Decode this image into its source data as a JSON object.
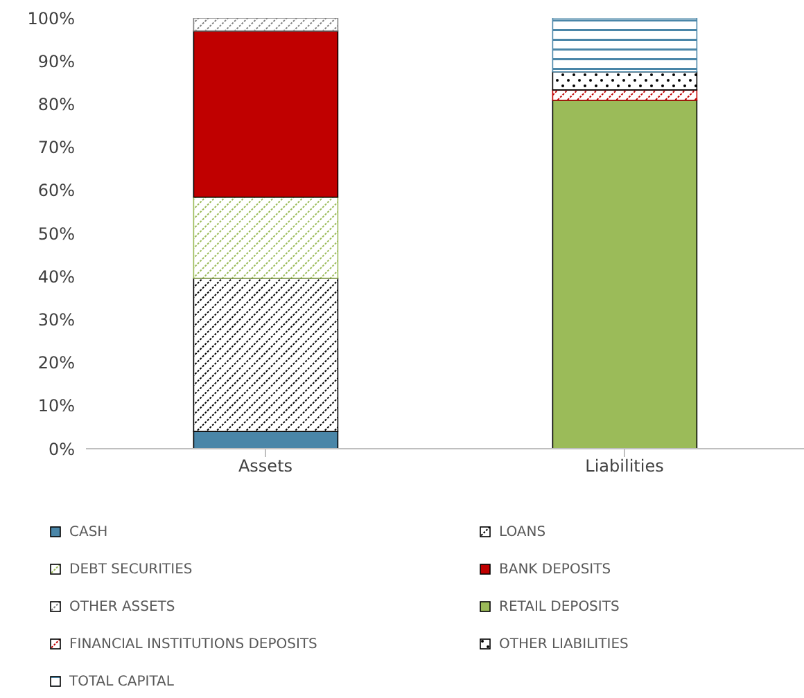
{
  "chart_data": {
    "type": "bar",
    "stacked": true,
    "categories": [
      "Assets",
      "Liabilities"
    ],
    "ylim": [
      0,
      100
    ],
    "yticks": [
      {
        "value": 0,
        "label": "0%"
      },
      {
        "value": 10,
        "label": "10%"
      },
      {
        "value": 20,
        "label": "20%"
      },
      {
        "value": 30,
        "label": "30%"
      },
      {
        "value": 40,
        "label": "40%"
      },
      {
        "value": 50,
        "label": "50%"
      },
      {
        "value": 60,
        "label": "60%"
      },
      {
        "value": 70,
        "label": "70%"
      },
      {
        "value": 80,
        "label": "80%"
      },
      {
        "value": 90,
        "label": "90%"
      },
      {
        "value": 100,
        "label": "100%"
      }
    ],
    "grid": false,
    "legend": "bottom",
    "series": [
      {
        "name": "CASH",
        "color": "#4a86a8",
        "values": [
          4.0,
          null
        ]
      },
      {
        "name": "LOANS",
        "color": "#000000",
        "values": [
          35.6,
          null
        ]
      },
      {
        "name": "DEBT SECURITIES",
        "color": "#9bbb59",
        "values": [
          18.8,
          null
        ]
      },
      {
        "name": "BANK DEPOSITS",
        "color": "#c00000",
        "values": [
          38.6,
          null
        ]
      },
      {
        "name": "OTHER ASSETS",
        "color": "#808080",
        "values": [
          3.0,
          null
        ]
      },
      {
        "name": "RETAIL DEPOSITS",
        "color": "#9bbb59",
        "values": [
          null,
          80.9
        ]
      },
      {
        "name": "FINANCIAL INSTITUTIONS DEPOSITS",
        "color": "#c00000",
        "values": [
          null,
          2.4
        ]
      },
      {
        "name": "OTHER LIABILITIES",
        "color": "#000000",
        "values": [
          null,
          4.2
        ]
      },
      {
        "name": "TOTAL CAPITAL",
        "color": "#4a86a8",
        "values": [
          null,
          12.5
        ]
      }
    ]
  }
}
